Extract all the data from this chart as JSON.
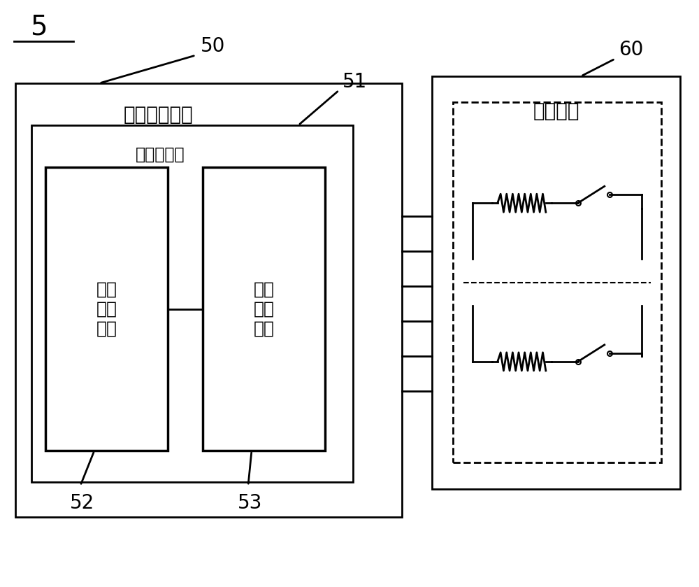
{
  "bg_color": "#ffffff",
  "line_color": "#000000",
  "label_5": "5",
  "label_50": "50",
  "label_51": "51",
  "label_52": "52",
  "label_53": "53",
  "label_60": "60",
  "text_signal_unit": "信号输出单元",
  "text_temp_detector": "温度检测器",
  "text_temp_module": "温度\n检测\n模块",
  "text_adc_module": "模数\n转换\n模块",
  "text_resistor_array": "电阵阵列",
  "font_size_label_num": 20,
  "font_size_chinese_large": 20,
  "font_size_chinese_medium": 17,
  "font_size_chinese_small": 15
}
